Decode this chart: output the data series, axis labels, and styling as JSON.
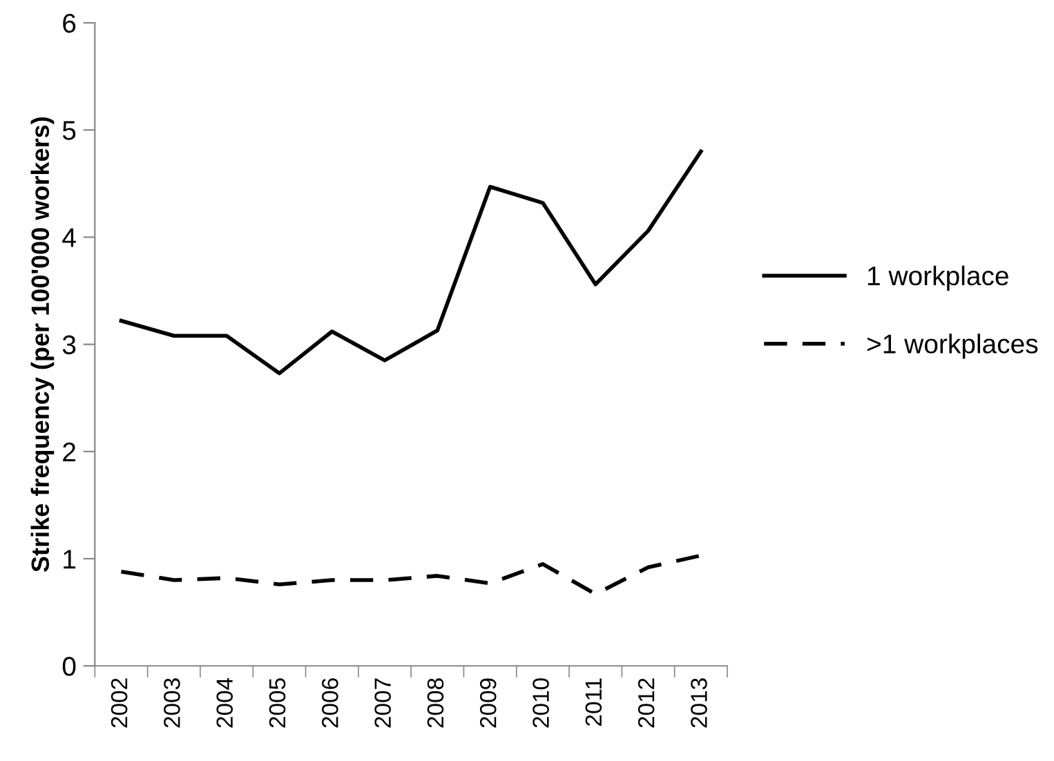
{
  "chart_data": {
    "type": "line",
    "ylabel": "Strike frequency (per 100'000 workers)",
    "categories": [
      "2002",
      "2003",
      "2004",
      "2005",
      "2006",
      "2007",
      "2008",
      "2009",
      "2010",
      "2011",
      "2012",
      "2013"
    ],
    "series": [
      {
        "name": "1 workplace",
        "color": "#000000",
        "line_style": "solid",
        "values": [
          3.22,
          3.08,
          3.08,
          2.73,
          3.12,
          2.85,
          3.13,
          4.47,
          4.32,
          3.56,
          4.06,
          4.8
        ]
      },
      {
        "name": ">1 workplaces",
        "color": "#000000",
        "line_style": "dashed",
        "values": [
          0.88,
          0.8,
          0.82,
          0.76,
          0.8,
          0.8,
          0.84,
          0.77,
          0.95,
          0.67,
          0.92,
          1.03
        ]
      }
    ],
    "ylim": [
      0,
      6
    ],
    "yticks": [
      0,
      1,
      2,
      3,
      4,
      5,
      6
    ],
    "grid": false,
    "legend": "right",
    "marker": "none"
  }
}
